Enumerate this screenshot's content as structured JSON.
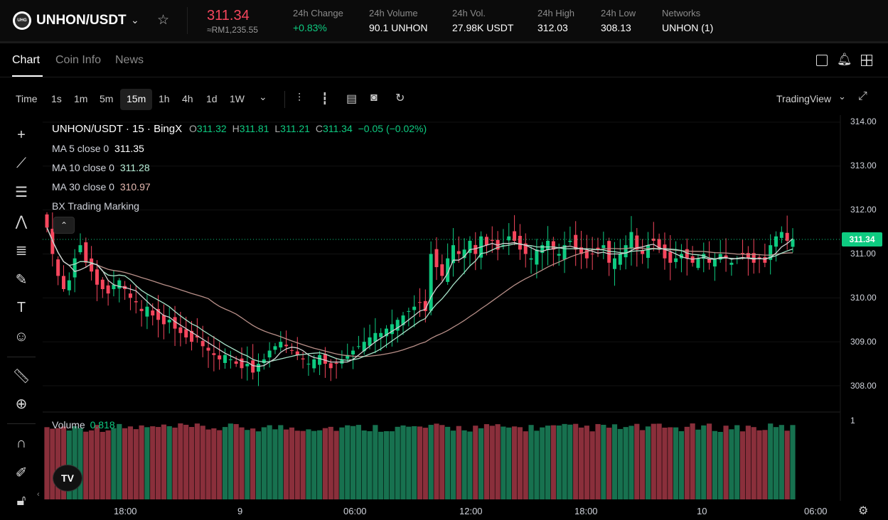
{
  "header": {
    "pair": "UNHON/USDT",
    "logo_text": "UHG",
    "price": "311.34",
    "price_local": "≈RM1,235.55",
    "stats": [
      {
        "label": "24h Change",
        "value": "+0.83%",
        "color": "#0ecb81"
      },
      {
        "label": "24h Volume",
        "value": "90.1 UNHON",
        "color": "#ffffff"
      },
      {
        "label": "24h Vol.",
        "value": "27.98K USDT",
        "color": "#ffffff"
      },
      {
        "label": "24h High",
        "value": "312.03",
        "color": "#ffffff"
      },
      {
        "label": "24h Low",
        "value": "308.13",
        "color": "#ffffff"
      },
      {
        "label": "Networks",
        "value": "UNHON (1)",
        "color": "#ffffff"
      }
    ]
  },
  "tabs": [
    "Chart",
    "Coin Info",
    "News"
  ],
  "active_tab": "Chart",
  "timeframes": [
    "Time",
    "1s",
    "1m",
    "5m",
    "15m",
    "1h",
    "4h",
    "1d",
    "1W"
  ],
  "selected_timeframe": "15m",
  "chart_provider": "TradingView",
  "legend": {
    "symbol": "UNHON/USDT · 15 · BingX",
    "ohlc": [
      {
        "k": "O",
        "v": "311.32"
      },
      {
        "k": "H",
        "v": "311.81"
      },
      {
        "k": "L",
        "v": "311.21"
      },
      {
        "k": "C",
        "v": "311.34"
      }
    ],
    "change": "−0.05 (−0.02%)",
    "ma": [
      {
        "label": "MA 5 close 0",
        "value": "311.35",
        "color": "#ffffff"
      },
      {
        "label": "MA 10 close 0",
        "value": "311.28",
        "color": "#b8f0d8"
      },
      {
        "label": "MA 30 close 0",
        "value": "310.97",
        "color": "#e6b9b0"
      }
    ],
    "indicator": "BX Trading Marking"
  },
  "volume_label": "Volume",
  "volume_value": "0.818",
  "colors": {
    "up": "#0ecb81",
    "down": "#f6465d",
    "up_vol": "#17714f",
    "down_vol": "#8a2f3b",
    "ma5": "#d0d0d0",
    "ma10": "#a6e2c8",
    "ma30": "#b99089"
  },
  "chart_data": {
    "type": "candlestick",
    "timeframe": "15m",
    "x_ticks": [
      "18:00",
      "9",
      "06:00",
      "12:00",
      "18:00",
      "10",
      "06:00"
    ],
    "y_ticks": [
      "314.00",
      "313.00",
      "312.00",
      "311.00",
      "310.00",
      "309.00",
      "308.00"
    ],
    "volume_y_ticks": [
      "1"
    ],
    "ylim": [
      307.6,
      314.2
    ],
    "last_price": "311.34",
    "close_series": [
      311.6,
      311.0,
      310.5,
      310.2,
      310.4,
      310.9,
      311.2,
      310.8,
      310.6,
      310.3,
      310.2,
      310.1,
      310.3,
      310.4,
      310.2,
      310.0,
      309.9,
      309.7,
      309.8,
      309.6,
      309.5,
      309.4,
      309.5,
      309.3,
      309.2,
      309.1,
      309.0,
      309.1,
      308.9,
      308.8,
      308.7,
      308.6,
      308.7,
      308.6,
      308.5,
      308.4,
      308.5,
      308.3,
      308.5,
      308.6,
      308.8,
      308.9,
      309.0,
      308.9,
      308.8,
      308.7,
      308.6,
      308.5,
      308.6,
      308.7,
      308.5,
      308.4,
      308.5,
      308.6,
      308.7,
      308.8,
      308.9,
      309.0,
      309.1,
      309.2,
      309.2,
      309.3,
      309.4,
      309.5,
      309.6,
      309.7,
      309.8,
      309.9,
      309.7,
      311.0,
      310.7,
      310.5,
      310.9,
      311.2,
      311.0,
      311.1,
      311.3,
      311.0,
      311.4,
      311.2,
      311.3,
      311.1,
      311.2,
      311.4,
      311.3,
      311.1,
      311.0,
      310.9,
      311.1,
      311.2,
      311.3,
      311.1,
      311.0,
      311.2,
      311.3,
      311.1,
      311.0,
      310.9,
      311.0,
      311.1,
      311.2,
      310.8,
      310.9,
      311.0,
      311.2,
      311.5,
      311.1,
      311.0,
      311.2,
      311.3,
      311.1,
      310.9,
      310.8,
      310.9,
      311.0,
      310.9,
      310.8,
      310.9,
      311.0,
      310.8,
      310.9,
      311.0,
      310.9,
      310.8,
      310.9,
      311.0,
      310.9,
      310.8,
      310.9,
      310.8,
      311.2,
      311.4,
      311.5,
      311.3,
      311.34
    ]
  }
}
